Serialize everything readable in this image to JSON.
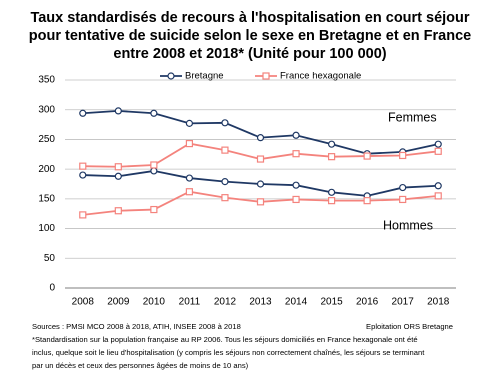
{
  "chart_data": {
    "type": "line",
    "title": [
      "Taux standardisés de recours à l'hospitalisation en court séjour",
      "pour tentative de suicide selon le sexe en Bretagne et en France",
      "entre 2008 et 2018*  (Unité pour 100 000)"
    ],
    "categories": [
      "2008",
      "2009",
      "2010",
      "2011",
      "2012",
      "2013",
      "2014",
      "2015",
      "2016",
      "2017",
      "2018"
    ],
    "groups": [
      "Femmes",
      "Hommes"
    ],
    "series": [
      {
        "name": "Bretagne",
        "color": "#1f3864",
        "marker": "circle",
        "values": [
          [
            294,
            298,
            294,
            277,
            278,
            253,
            257,
            242,
            226,
            229,
            242
          ],
          [
            190,
            188,
            197,
            185,
            179,
            175,
            173,
            161,
            155,
            169,
            172
          ]
        ]
      },
      {
        "name": "France hexagonale",
        "color": "#f4837d",
        "marker": "square",
        "values": [
          [
            205,
            204,
            207,
            243,
            232,
            217,
            226,
            221,
            222,
            223,
            230
          ],
          [
            123,
            130,
            132,
            162,
            152,
            145,
            149,
            147,
            147,
            149,
            155
          ]
        ]
      }
    ],
    "ylim": [
      0,
      350
    ],
    "yticks": [
      0,
      50,
      100,
      150,
      200,
      250,
      300,
      350
    ],
    "grid": true,
    "source": "Sources : PMSI MCO 2008 à 2018, ATIH, INSEE 2008 à 2018",
    "credit": "Eploitation ORS Bretagne",
    "notes": [
      "*Standardisation sur la population française au RP 2006. Tous les séjours domiciliés en France hexagonale ont été",
      "inclus, quelque soit le lieu d'hospitalisation (y compris les séjours non correctement chaînés, les séjours se terminant",
      "par un décès et ceux des personnes âgées de moins de 10 ans)"
    ]
  }
}
